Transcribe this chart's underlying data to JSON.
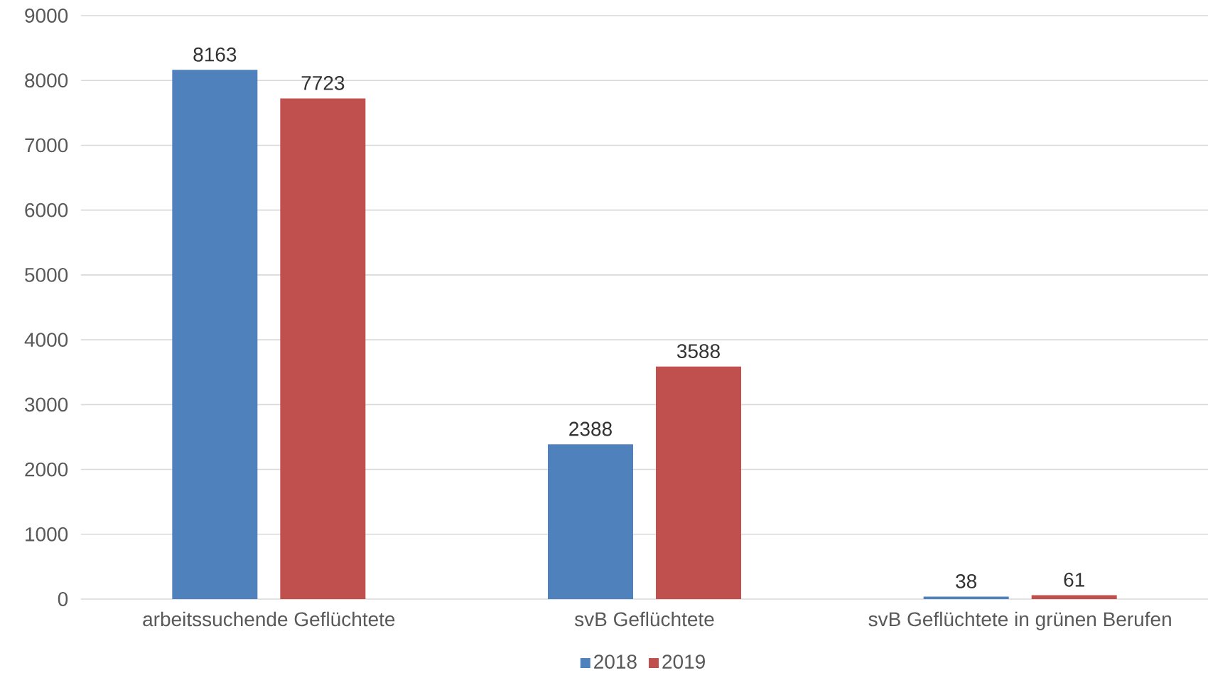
{
  "chart_data": {
    "type": "bar",
    "categories": [
      "arbeitssuchende Geflüchtete",
      "svB Geflüchtete",
      "svB Geflüchtete in grünen Berufen"
    ],
    "series": [
      {
        "name": "2018",
        "color": "#4f81bd",
        "values": [
          8163,
          2388,
          38
        ]
      },
      {
        "name": "2019",
        "color": "#c0504d",
        "values": [
          7723,
          3588,
          61
        ]
      }
    ],
    "ylim": [
      0,
      9000
    ],
    "yticks": [
      0,
      1000,
      2000,
      3000,
      4000,
      5000,
      6000,
      7000,
      8000,
      9000
    ],
    "grid": "y",
    "legend": "bottom",
    "data_labels": true
  }
}
